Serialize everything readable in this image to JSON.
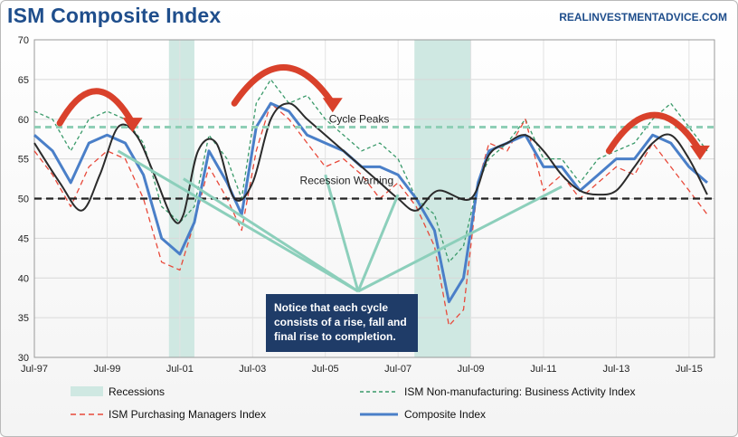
{
  "header": {
    "title": "ISM Composite Index",
    "source": "REALINVESTMENTADVICE.COM"
  },
  "annotations": {
    "cycle_peaks": "Cycle Peaks",
    "recession_warning": "Recession Warning",
    "callout": "Notice that each cycle consists of a rise, fall and final rise to completion."
  },
  "legend": {
    "recessions": "Recessions",
    "non_mfg": "ISM Non-manufacturing: Business Activity Index",
    "pmi": "ISM Purchasing Managers Index",
    "composite": "Composite Index"
  },
  "colors": {
    "recession": "#cfe8e2",
    "non_mfg": "#3a9a6a",
    "pmi": "#e8493a",
    "composite": "#4a7fc8",
    "trend": "#2b2b2b",
    "peak_line": "#8fcfb6",
    "arrow": "#d9412b"
  },
  "chart_data": {
    "type": "line",
    "x_tick_labels": [
      "Jul-97",
      "Jul-99",
      "Jul-01",
      "Jul-03",
      "Jul-05",
      "Jul-07",
      "Jul-09",
      "Jul-11",
      "Jul-13",
      "Jul-15"
    ],
    "ylim": [
      30,
      70
    ],
    "y_ticks": [
      30,
      35,
      40,
      45,
      50,
      55,
      60,
      65,
      70
    ],
    "x_range": [
      1997.5,
      2016.2
    ],
    "reference_lines": [
      {
        "name": "Cycle Peaks",
        "y": 59
      },
      {
        "name": "Recession Warning",
        "y": 50
      }
    ],
    "recessions": [
      [
        2001.2,
        2001.9
      ],
      [
        2007.95,
        2009.5
      ]
    ],
    "series": [
      {
        "name": "ISM Non-manufacturing: Business Activity Index",
        "x": [
          1997.5,
          1998.0,
          1998.5,
          1999.0,
          1999.5,
          2000.0,
          2000.5,
          2001.0,
          2001.5,
          2001.9,
          2002.3,
          2002.8,
          2003.2,
          2003.6,
          2004.0,
          2004.5,
          2005.0,
          2005.5,
          2006.0,
          2006.5,
          2007.0,
          2007.5,
          2008.0,
          2008.5,
          2008.9,
          2009.3,
          2009.7,
          2010.0,
          2010.5,
          2011.0,
          2011.5,
          2012.0,
          2012.5,
          2013.0,
          2013.5,
          2014.0,
          2014.5,
          2015.0,
          2015.5,
          2016.0
        ],
        "y": [
          61,
          60,
          56,
          60,
          61,
          60,
          57,
          49,
          47,
          49,
          58,
          55,
          50,
          62,
          65,
          62,
          63,
          60,
          58,
          56,
          57,
          55,
          50,
          48,
          42,
          44,
          52,
          55,
          57,
          60,
          55,
          55,
          52,
          55,
          56,
          57,
          60,
          62,
          59,
          56
        ]
      },
      {
        "name": "ISM Purchasing Managers Index",
        "x": [
          1997.5,
          1998.0,
          1998.5,
          1999.0,
          1999.5,
          2000.0,
          2000.5,
          2001.0,
          2001.5,
          2001.9,
          2002.3,
          2002.8,
          2003.2,
          2003.6,
          2004.0,
          2004.5,
          2005.0,
          2005.5,
          2006.0,
          2006.5,
          2007.0,
          2007.5,
          2008.0,
          2008.5,
          2008.9,
          2009.3,
          2009.7,
          2010.0,
          2010.5,
          2011.0,
          2011.5,
          2012.0,
          2012.5,
          2013.0,
          2013.5,
          2014.0,
          2014.5,
          2015.0,
          2015.5,
          2016.0
        ],
        "y": [
          56,
          53,
          49,
          54,
          56,
          55,
          50,
          42,
          41,
          47,
          54,
          50,
          46,
          56,
          62,
          60,
          57,
          54,
          55,
          53,
          50,
          52,
          49,
          44,
          34,
          36,
          52,
          57,
          56,
          60,
          51,
          53,
          50,
          52,
          54,
          53,
          57,
          54,
          51,
          48
        ]
      },
      {
        "name": "Composite Index",
        "x": [
          1997.5,
          1998.0,
          1998.5,
          1999.0,
          1999.5,
          2000.0,
          2000.5,
          2001.0,
          2001.5,
          2001.9,
          2002.3,
          2002.8,
          2003.2,
          2003.6,
          2004.0,
          2004.5,
          2005.0,
          2005.5,
          2006.0,
          2006.5,
          2007.0,
          2007.5,
          2008.0,
          2008.5,
          2008.9,
          2009.3,
          2009.7,
          2010.0,
          2010.5,
          2011.0,
          2011.5,
          2012.0,
          2012.5,
          2013.0,
          2013.5,
          2014.0,
          2014.5,
          2015.0,
          2015.5,
          2016.0
        ],
        "y": [
          58,
          56,
          52,
          57,
          58,
          57,
          53,
          45,
          43,
          47,
          56,
          52,
          48,
          59,
          62,
          61,
          58,
          57,
          56,
          54,
          54,
          53,
          50,
          46,
          37,
          40,
          52,
          56,
          57,
          58,
          54,
          54,
          51,
          53,
          55,
          55,
          58,
          57,
          54,
          52
        ]
      }
    ],
    "trend_line": {
      "x": [
        1997.5,
        1998.2,
        1998.8,
        1999.3,
        1999.8,
        2000.3,
        2000.8,
        2001.3,
        2001.6,
        2002.0,
        2002.5,
        2003.0,
        2003.5,
        2004.0,
        2004.5,
        2005.0,
        2005.5,
        2006.0,
        2006.5,
        2007.0,
        2007.5,
        2008.0,
        2008.6,
        2009.5,
        2010.0,
        2010.5,
        2011.0,
        2011.5,
        2012.0,
        2012.5,
        2013.0,
        2013.5,
        2014.0,
        2014.5,
        2015.0,
        2015.5,
        2016.0
      ],
      "y": [
        57,
        52,
        48.5,
        53,
        59,
        58,
        53,
        47.5,
        48,
        56,
        57,
        50,
        52,
        60,
        62,
        60,
        58,
        56,
        54,
        52,
        50,
        48.5,
        51,
        50,
        55.5,
        57,
        58,
        56,
        53,
        51,
        50.5,
        51,
        54,
        57,
        58,
        55,
        50.5
      ]
    },
    "grid": true,
    "legend_position": "bottom"
  }
}
